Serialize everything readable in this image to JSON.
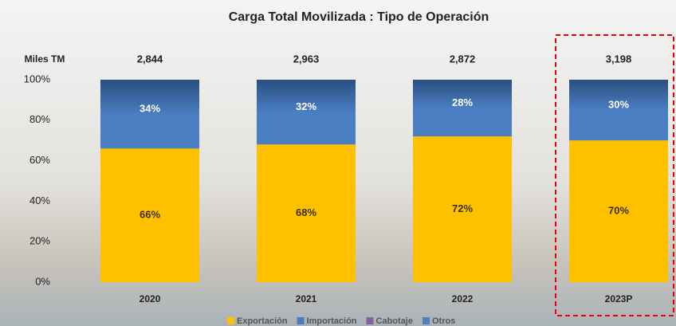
{
  "chart_data": {
    "type": "stacked_bar",
    "title": "Carga Total Movilizada : Tipo de Operación",
    "unit_label": "Miles TM",
    "categories": [
      "2020",
      "2021",
      "2022",
      "2023P"
    ],
    "totals": [
      {
        "value": 2844,
        "label": "2,844"
      },
      {
        "value": 2963,
        "label": "2,963"
      },
      {
        "value": 2872,
        "label": "2,872"
      },
      {
        "value": 3198,
        "label": "3,198"
      }
    ],
    "series": [
      {
        "name": "Exportación",
        "color": "#ffc000",
        "values": [
          66,
          68,
          72,
          70
        ],
        "value_labels": [
          "66%",
          "68%",
          "72%",
          "70%"
        ]
      },
      {
        "name": "Importación",
        "color": "#4a7ec2",
        "values": [
          34,
          32,
          28,
          30
        ],
        "value_labels": [
          "34%",
          "32%",
          "28%",
          "30%"
        ]
      },
      {
        "name": "Cabotaje",
        "color": "#8064a2",
        "values": [
          0,
          0,
          0,
          0
        ]
      },
      {
        "name": "Otros",
        "color": "#4f81bd",
        "values": [
          0,
          0,
          0,
          0
        ]
      }
    ],
    "ylim": [
      0,
      100
    ],
    "yticks": [
      {
        "value": 0,
        "label": "0%"
      },
      {
        "value": 20,
        "label": "20%"
      },
      {
        "value": 40,
        "label": "40%"
      },
      {
        "value": 60,
        "label": "60%"
      },
      {
        "value": 80,
        "label": "80%"
      },
      {
        "value": 100,
        "label": "100%"
      }
    ],
    "highlight_category": 3
  }
}
